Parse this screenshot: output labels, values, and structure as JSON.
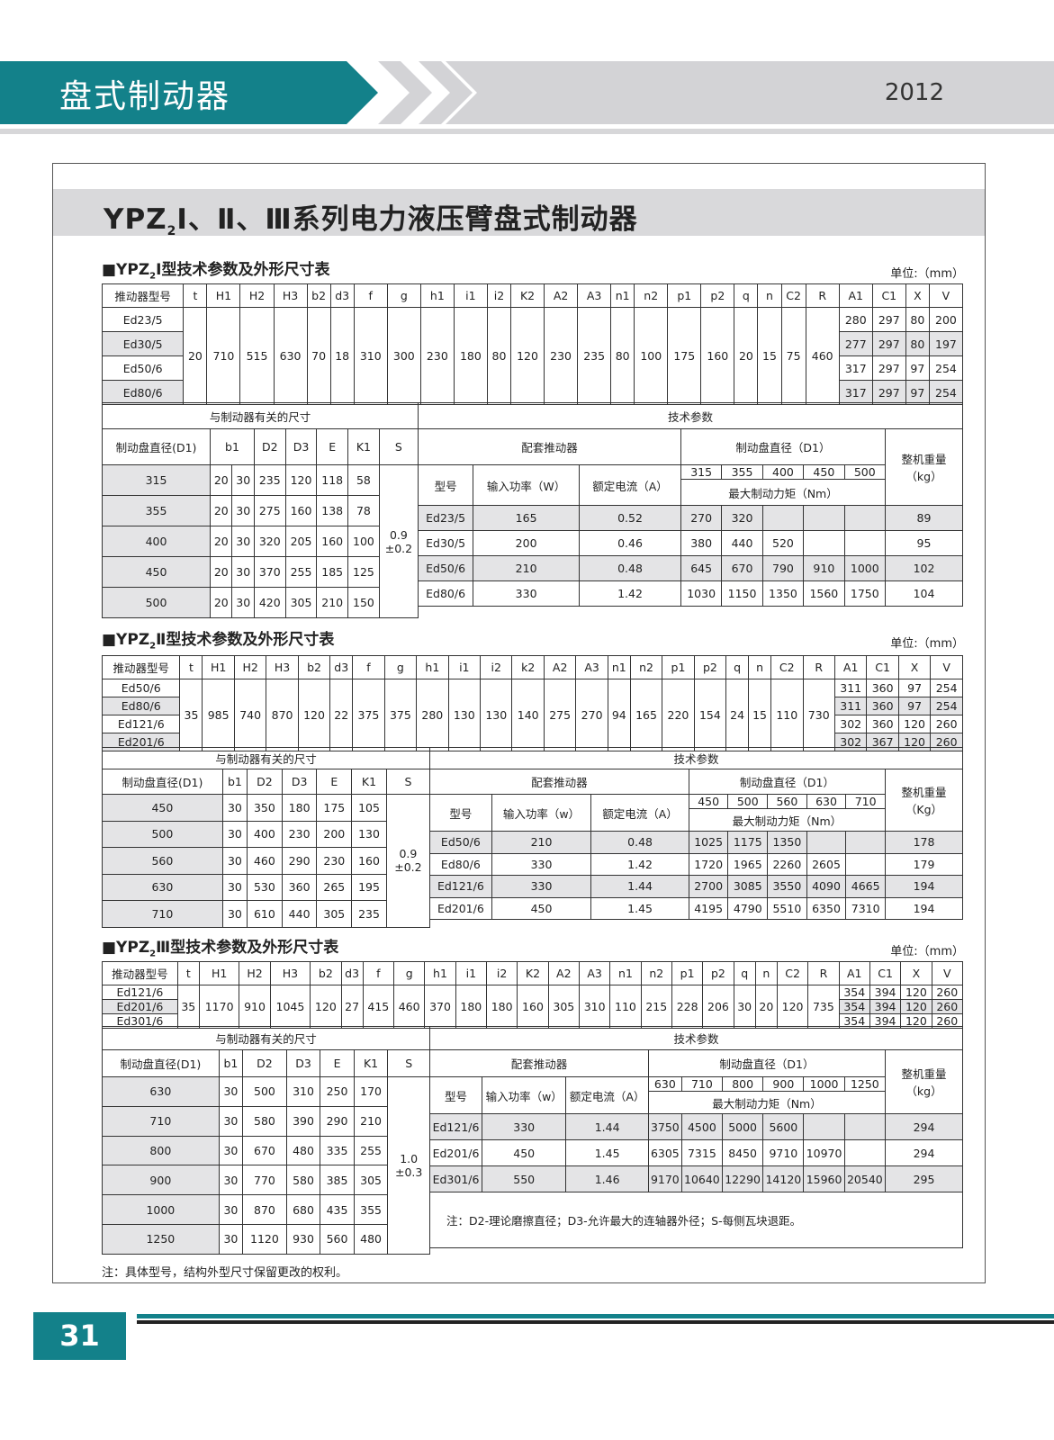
{
  "header": {
    "title": "盘式制动器",
    "year": "2012"
  },
  "main_title": {
    "prefix": "YPZ",
    "sub": "2",
    "suffix": "Ⅰ、Ⅱ、Ⅲ系列电力液压臂盘式制动器"
  },
  "sections": [
    {
      "prefix": "■YPZ",
      "sub": "2",
      "title": "Ⅰ型技术参数及外形尺寸表",
      "unit": "单位:（mm）",
      "spec": {
        "headers": [
          "推动器型号",
          "t",
          "H1",
          "H2",
          "H3",
          "b2",
          "d3",
          "f",
          "g",
          "h1",
          "i1",
          "i2",
          "K2",
          "A2",
          "A3",
          "n1",
          "n2",
          "p1",
          "p2",
          "q",
          "n",
          "C2",
          "R",
          "A1",
          "C1",
          "X",
          "V"
        ],
        "shared": [
          "20",
          "710",
          "515",
          "630",
          "70",
          "18",
          "310",
          "300",
          "230",
          "180",
          "80",
          "120",
          "230",
          "235",
          "80",
          "100",
          "175",
          "160",
          "20",
          "15",
          "75",
          "460"
        ],
        "models": [
          {
            "name": "Ed23/5",
            "vals": [
              "280",
              "297",
              "80",
              "200"
            ]
          },
          {
            "name": "Ed30/5",
            "vals": [
              "277",
              "297",
              "80",
              "197"
            ]
          },
          {
            "name": "Ed50/6",
            "vals": [
              "317",
              "297",
              "97",
              "254"
            ]
          },
          {
            "name": "Ed80/6",
            "vals": [
              "317",
              "297",
              "97",
              "254"
            ]
          }
        ]
      },
      "dims": {
        "group": "与制动器有关的尺寸",
        "headers": [
          "制动盘直径(D1)",
          "b1",
          "D2",
          "D3",
          "E",
          "K1",
          "S"
        ],
        "rows": [
          {
            "d1": "315",
            "b1": [
              "20",
              "30"
            ],
            "v": [
              "235",
              "120",
              "118",
              "58"
            ]
          },
          {
            "d1": "355",
            "b1": [
              "20",
              "30"
            ],
            "v": [
              "275",
              "160",
              "138",
              "78"
            ]
          },
          {
            "d1": "400",
            "b1": [
              "20",
              "30"
            ],
            "v": [
              "320",
              "205",
              "160",
              "100"
            ]
          },
          {
            "d1": "450",
            "b1": [
              "20",
              "30"
            ],
            "v": [
              "370",
              "255",
              "185",
              "125"
            ]
          },
          {
            "d1": "500",
            "b1": [
              "20",
              "30"
            ],
            "v": [
              "420",
              "305",
              "210",
              "150"
            ]
          }
        ],
        "s_value": [
          "0.9",
          "±0.2"
        ]
      },
      "tech": {
        "group": "技术参数",
        "actuator": "配套推动器",
        "cols": [
          "型号",
          "输入功率（W）",
          "额定电流（A）"
        ],
        "disc": "制动盘直径（D1）",
        "torque": "最大制动力矩（Nm）",
        "weight": "整机重量（kg）",
        "diameters": [
          "315",
          "355",
          "400",
          "450",
          "500"
        ],
        "rows": [
          {
            "model": "Ed23/5",
            "power": "165",
            "current": "0.52",
            "torques": [
              "270",
              "320",
              "",
              "",
              ""
            ],
            "weight": "89"
          },
          {
            "model": "Ed30/5",
            "power": "200",
            "current": "0.46",
            "torques": [
              "380",
              "440",
              "520",
              "",
              ""
            ],
            "weight": "95"
          },
          {
            "model": "Ed50/6",
            "power": "210",
            "current": "0.48",
            "torques": [
              "645",
              "670",
              "790",
              "910",
              "1000"
            ],
            "weight": "102"
          },
          {
            "model": "Ed80/6",
            "power": "330",
            "current": "1.42",
            "torques": [
              "1030",
              "1150",
              "1350",
              "1560",
              "1750"
            ],
            "weight": "104"
          }
        ]
      }
    },
    {
      "prefix": "■YPZ",
      "sub": "2",
      "title": "Ⅱ型技术参数及外形尺寸表",
      "unit": "单位:（mm）",
      "spec": {
        "headers": [
          "推动器型号",
          "t",
          "H1",
          "H2",
          "H3",
          "b2",
          "d3",
          "f",
          "g",
          "h1",
          "i1",
          "i2",
          "k2",
          "A2",
          "A3",
          "n1",
          "n2",
          "p1",
          "p2",
          "q",
          "n",
          "C2",
          "R",
          "A1",
          "C1",
          "X",
          "V"
        ],
        "shared": [
          "35",
          "985",
          "740",
          "870",
          "120",
          "22",
          "375",
          "375",
          "280",
          "130",
          "130",
          "140",
          "275",
          "270",
          "94",
          "165",
          "220",
          "154",
          "24",
          "15",
          "110",
          "730"
        ],
        "models": [
          {
            "name": "Ed50/6",
            "vals": [
              "311",
              "360",
              "97",
              "254"
            ]
          },
          {
            "name": "Ed80/6",
            "vals": [
              "311",
              "360",
              "97",
              "254"
            ]
          },
          {
            "name": "Ed121/6",
            "vals": [
              "302",
              "360",
              "120",
              "260"
            ]
          },
          {
            "name": "Ed201/6",
            "vals": [
              "302",
              "367",
              "120",
              "260"
            ]
          }
        ]
      },
      "dims": {
        "group": "与制动器有关的尺寸",
        "headers": [
          "制动盘直径(D1)",
          "b1",
          "D2",
          "D3",
          "E",
          "K1",
          "S"
        ],
        "rows": [
          {
            "d1": "450",
            "b1": [
              "30"
            ],
            "v": [
              "350",
              "180",
              "175",
              "105"
            ]
          },
          {
            "d1": "500",
            "b1": [
              "30"
            ],
            "v": [
              "400",
              "230",
              "200",
              "130"
            ]
          },
          {
            "d1": "560",
            "b1": [
              "30"
            ],
            "v": [
              "460",
              "290",
              "230",
              "160"
            ]
          },
          {
            "d1": "630",
            "b1": [
              "30"
            ],
            "v": [
              "530",
              "360",
              "265",
              "195"
            ]
          },
          {
            "d1": "710",
            "b1": [
              "30"
            ],
            "v": [
              "610",
              "440",
              "305",
              "235"
            ]
          }
        ],
        "s_value": [
          "0.9",
          "±0.2"
        ]
      },
      "tech": {
        "group": "技术参数",
        "actuator": "配套推动器",
        "cols": [
          "型号",
          "输入功率（w）",
          "额定电流（A）"
        ],
        "disc": "制动盘直径（D1）",
        "torque": "最大制动力矩（Nm）",
        "weight": "整机重量（Kg）",
        "diameters": [
          "450",
          "500",
          "560",
          "630",
          "710"
        ],
        "rows": [
          {
            "model": "Ed50/6",
            "power": "210",
            "current": "0.48",
            "torques": [
              "1025",
              "1175",
              "1350",
              "",
              ""
            ],
            "weight": "178"
          },
          {
            "model": "Ed80/6",
            "power": "330",
            "current": "1.42",
            "torques": [
              "1720",
              "1965",
              "2260",
              "2605",
              ""
            ],
            "weight": "179"
          },
          {
            "model": "Ed121/6",
            "power": "330",
            "current": "1.44",
            "torques": [
              "2700",
              "3085",
              "3550",
              "4090",
              "4665"
            ],
            "weight": "194"
          },
          {
            "model": "Ed201/6",
            "power": "450",
            "current": "1.45",
            "torques": [
              "4195",
              "4790",
              "5510",
              "6350",
              "7310"
            ],
            "weight": "194"
          }
        ]
      }
    },
    {
      "prefix": "■YPZ",
      "sub": "2",
      "title": "Ⅲ型技术参数及外形尺寸表",
      "unit": "单位:（mm）",
      "spec": {
        "headers": [
          "推动器型号",
          "t",
          "H1",
          "H2",
          "H3",
          "b2",
          "d3",
          "f",
          "g",
          "h1",
          "i1",
          "i2",
          "K2",
          "A2",
          "A3",
          "n1",
          "n2",
          "p1",
          "p2",
          "q",
          "n",
          "C2",
          "R",
          "A1",
          "C1",
          "X",
          "V"
        ],
        "shared": [
          "35",
          "1170",
          "910",
          "1045",
          "120",
          "27",
          "415",
          "460",
          "370",
          "180",
          "180",
          "160",
          "305",
          "310",
          "110",
          "215",
          "228",
          "206",
          "30",
          "20",
          "120",
          "735"
        ],
        "models": [
          {
            "name": "Ed121/6",
            "vals": [
              "354",
              "394",
              "120",
              "260"
            ]
          },
          {
            "name": "Ed201/6",
            "vals": [
              "354",
              "394",
              "120",
              "260"
            ]
          },
          {
            "name": "Ed301/6",
            "vals": [
              "354",
              "394",
              "120",
              "260"
            ]
          }
        ]
      },
      "dims": {
        "group": "与制动器有关的尺寸",
        "headers": [
          "制动盘直径(D1)",
          "b1",
          "D2",
          "D3",
          "E",
          "K1",
          "S"
        ],
        "rows": [
          {
            "d1": "630",
            "b1": [
              "30"
            ],
            "v": [
              "500",
              "310",
              "250",
              "170"
            ]
          },
          {
            "d1": "710",
            "b1": [
              "30"
            ],
            "v": [
              "580",
              "390",
              "290",
              "210"
            ]
          },
          {
            "d1": "800",
            "b1": [
              "30"
            ],
            "v": [
              "670",
              "480",
              "335",
              "255"
            ]
          },
          {
            "d1": "900",
            "b1": [
              "30"
            ],
            "v": [
              "770",
              "580",
              "385",
              "305"
            ]
          },
          {
            "d1": "1000",
            "b1": [
              "30"
            ],
            "v": [
              "870",
              "680",
              "435",
              "355"
            ]
          },
          {
            "d1": "1250",
            "b1": [
              "30"
            ],
            "v": [
              "1120",
              "930",
              "560",
              "480"
            ]
          }
        ],
        "s_value": [
          "1.0",
          "±0.3"
        ]
      },
      "tech": {
        "group": "技术参数",
        "actuator": "配套推动器",
        "cols": [
          "型号",
          "输入功率（w）",
          "额定电流（A）"
        ],
        "disc": "制动盘直径（D1）",
        "torque": "最大制动力矩（Nm）",
        "weight": "整机重量（kg）",
        "diameters": [
          "630",
          "710",
          "800",
          "900",
          "1000",
          "1250"
        ],
        "rows": [
          {
            "model": "Ed121/6",
            "power": "330",
            "current": "1.44",
            "torques": [
              "3750",
              "4500",
              "5000",
              "5600",
              "",
              ""
            ],
            "weight": "294"
          },
          {
            "model": "Ed201/6",
            "power": "450",
            "current": "1.45",
            "torques": [
              "6305",
              "7315",
              "8450",
              "9710",
              "10970",
              ""
            ],
            "weight": "294"
          },
          {
            "model": "Ed301/6",
            "power": "550",
            "current": "1.46",
            "torques": [
              "9170",
              "10640",
              "12290",
              "14120",
              "15960",
              "20540"
            ],
            "weight": "295"
          }
        ],
        "note": "注：D2-理论磨擦直径；D3-允许最大的连轴器外径；S-每侧瓦块退距。"
      }
    }
  ],
  "footer": {
    "note": "注：具体型号，结构外型尺寸保留更改的权利。",
    "page": "31"
  },
  "colors": {
    "brand": "#13818a",
    "band": "#d9d9db",
    "shade": "#e4e4e6"
  }
}
